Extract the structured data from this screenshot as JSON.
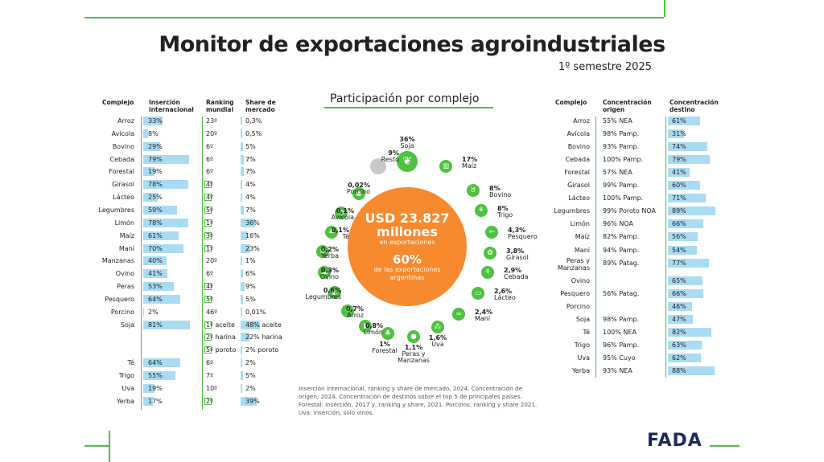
{
  "title": "Monitor de exportaciones agroindustriales",
  "subtitle": "1º semestre 2025",
  "left_headers": {
    "complejo": "Complejo",
    "insercion": "Inserción internacional",
    "ranking": "Ranking mundial",
    "share": "Share de mercado"
  },
  "left_rows": [
    {
      "name": "Arroz",
      "ins": "33%",
      "ins_v": 33,
      "rank": "23º",
      "rank_box": false,
      "share": "0,3%"
    },
    {
      "name": "Avícola",
      "ins": "8%",
      "ins_v": 8,
      "rank": "20º",
      "rank_box": false,
      "share": "0,5%"
    },
    {
      "name": "Bovino",
      "ins": "29%",
      "ins_v": 29,
      "rank": "6º",
      "rank_box": false,
      "share": "5%"
    },
    {
      "name": "Cebada",
      "ins": "79%",
      "ins_v": 79,
      "rank": "6º",
      "rank_box": false,
      "share": "7%"
    },
    {
      "name": "Forestal",
      "ins": "19%",
      "ins_v": 19,
      "rank": "6º",
      "rank_box": false,
      "share": "7%"
    },
    {
      "name": "Girasol",
      "ins": "78%",
      "ins_v": 78,
      "rank": "4º",
      "rank_box": true,
      "share": "4%"
    },
    {
      "name": "Lácteo",
      "ins": "25%",
      "ins_v": 25,
      "rank": "4º",
      "rank_box": true,
      "share": "4%"
    },
    {
      "name": "Legumbres",
      "ins": "59%",
      "ins_v": 59,
      "rank": "5º",
      "rank_box": true,
      "share": "7%"
    },
    {
      "name": "Limón",
      "ins": "78%",
      "ins_v": 78,
      "rank": "1º",
      "rank_box": true,
      "share": "36%"
    },
    {
      "name": "Maíz",
      "ins": "61%",
      "ins_v": 61,
      "rank": "3º",
      "rank_box": true,
      "share": "16%"
    },
    {
      "name": "Maní",
      "ins": "70%",
      "ins_v": 70,
      "rank": "1º",
      "rank_box": true,
      "share": "23%"
    },
    {
      "name": "Manzanas",
      "ins": "40%",
      "ins_v": 40,
      "rank": "20º",
      "rank_box": false,
      "share": "1%"
    },
    {
      "name": "Ovino",
      "ins": "41%",
      "ins_v": 41,
      "rank": "6º",
      "rank_box": false,
      "share": "6%"
    },
    {
      "name": "Peras",
      "ins": "53%",
      "ins_v": 53,
      "rank": "4º",
      "rank_box": true,
      "share": "9%"
    },
    {
      "name": "Pesquero",
      "ins": "64%",
      "ins_v": 64,
      "rank": "5º",
      "rank_box": true,
      "share": "5%"
    },
    {
      "name": "Porcino",
      "ins": "2%",
      "ins_v": 2,
      "rank": "46º",
      "rank_box": false,
      "share": "0,01%"
    },
    {
      "name": "Soja",
      "ins": "81%",
      "ins_v": 81,
      "rank": "1º aceite",
      "rank_box": true,
      "share": "48% aceite"
    },
    {
      "name": "",
      "ins": "",
      "ins_v": 0,
      "rank": "2º harina",
      "rank_box": true,
      "share": "22% harina"
    },
    {
      "name": "",
      "ins": "",
      "ins_v": 0,
      "rank": "5º poroto",
      "rank_box": true,
      "share": "2% poroto"
    },
    {
      "name": "Té",
      "ins": "64%",
      "ins_v": 64,
      "rank": "6º",
      "rank_box": false,
      "share": "2%"
    },
    {
      "name": "Trigo",
      "ins": "55%",
      "ins_v": 55,
      "rank": "7º",
      "rank_box": false,
      "share": "5%"
    },
    {
      "name": "Uva",
      "ins": "19%",
      "ins_v": 19,
      "rank": "10º",
      "rank_box": false,
      "share": "2%"
    },
    {
      "name": "Yerba",
      "ins": "17%",
      "ins_v": 17,
      "rank": "2º",
      "rank_box": true,
      "share": "39%"
    }
  ],
  "center": {
    "heading": "Participación por complejo",
    "amount": "USD 23.827",
    "amount2": "millones",
    "amount_sub": "en exportaciones",
    "pct": "60%",
    "pct_sub": "de las exportaciones argentinas"
  },
  "sectors": [
    {
      "pct": "36%",
      "name": "Soja",
      "icon": "soy"
    },
    {
      "pct": "17%",
      "name": "Maíz",
      "icon": "corn"
    },
    {
      "pct": "8%",
      "name": "Bovino",
      "icon": "cow"
    },
    {
      "pct": "8%",
      "name": "Trigo",
      "icon": "wheat"
    },
    {
      "pct": "4,3%",
      "name": "Pesquero",
      "icon": "fish"
    },
    {
      "pct": "3,8%",
      "name": "Girasol",
      "icon": "sunflower"
    },
    {
      "pct": "2,9%",
      "name": "Cebada",
      "icon": "barley"
    },
    {
      "pct": "2,6%",
      "name": "Lácteo",
      "icon": "milk"
    },
    {
      "pct": "2,4%",
      "name": "Maní",
      "icon": "peanut"
    },
    {
      "pct": "1,6%",
      "name": "Uva",
      "icon": "grape"
    },
    {
      "pct": "1,1%",
      "name": "Peras y Manzanas",
      "icon": "apple"
    },
    {
      "pct": "1%",
      "name": "Forestal",
      "icon": "tree"
    },
    {
      "pct": "0,8%",
      "name": "Limón",
      "icon": "lemon"
    },
    {
      "pct": "0,7%",
      "name": "Arroz",
      "icon": "rice"
    },
    {
      "pct": "0,6%",
      "name": "Legumbres",
      "icon": "legume"
    },
    {
      "pct": "0,3%",
      "name": "Ovino",
      "icon": "sheep"
    },
    {
      "pct": "0,2%",
      "name": "Yerba",
      "icon": "yerba"
    },
    {
      "pct": "0,1%",
      "name": "Té",
      "icon": "tea"
    },
    {
      "pct": "0,1%",
      "name": "Avícola",
      "icon": "chicken"
    },
    {
      "pct": "0,02%",
      "name": "Porcino",
      "icon": "pig"
    },
    {
      "pct": "9%",
      "name": "Resto",
      "icon": "rest"
    }
  ],
  "right_headers": {
    "complejo": "Complejo",
    "origen": "Concentración origen",
    "destino": "Concentración destino"
  },
  "right_rows": [
    {
      "name": "Arroz",
      "origen": "55% NEA",
      "dest": "61%",
      "dest_v": 61
    },
    {
      "name": "Avícola",
      "origen": "98% Pamp.",
      "dest": "31%",
      "dest_v": 31
    },
    {
      "name": "Bovino",
      "origen": "93% Pamp.",
      "dest": "74%",
      "dest_v": 74
    },
    {
      "name": "Cebada",
      "origen": "100% Pamp.",
      "dest": "79%",
      "dest_v": 79
    },
    {
      "name": "Forestal",
      "origen": "57% NEA",
      "dest": "41%",
      "dest_v": 41
    },
    {
      "name": "Girasol",
      "origen": "99% Pamp.",
      "dest": "60%",
      "dest_v": 60
    },
    {
      "name": "Lácteo",
      "origen": "100% Pamp.",
      "dest": "71%",
      "dest_v": 71
    },
    {
      "name": "Legumbres",
      "origen": "99% Poroto NOA",
      "dest": "89%",
      "dest_v": 89
    },
    {
      "name": "Limón",
      "origen": "96% NOA",
      "dest": "66%",
      "dest_v": 66
    },
    {
      "name": "Maíz",
      "origen": "82% Pamp.",
      "dest": "56%",
      "dest_v": 56
    },
    {
      "name": "Maní",
      "origen": "94% Pamp.",
      "dest": "54%",
      "dest_v": 54
    },
    {
      "name": "Peras y Manzanas",
      "origen": "89% Patag.",
      "dest": "77%",
      "dest_v": 77
    },
    {
      "name": "Ovino",
      "origen": "",
      "dest": "65%",
      "dest_v": 65
    },
    {
      "name": "Pesquero",
      "origen": "56% Patag.",
      "dest": "66%",
      "dest_v": 66
    },
    {
      "name": "Porcino",
      "origen": "",
      "dest": "46%",
      "dest_v": 46
    },
    {
      "name": "Soja",
      "origen": "98% Pamp.",
      "dest": "47%",
      "dest_v": 47
    },
    {
      "name": "Té",
      "origen": "100% NEA",
      "dest": "82%",
      "dest_v": 82
    },
    {
      "name": "Trigo",
      "origen": "96% Pamp.",
      "dest": "63%",
      "dest_v": 63
    },
    {
      "name": "Uva",
      "origen": "95% Cuyo",
      "dest": "62%",
      "dest_v": 62
    },
    {
      "name": "Yerba",
      "origen": "93% NEA",
      "dest": "88%",
      "dest_v": 88
    }
  ],
  "note": "Inserción internacional, ranking y share de mercado, 2024. Concentración de origen, 2024. Concentración de destinos sobre el top 5 de principales países. Forestal: inserción, 2017 y, ranking y share, 2021. Porcinos: ranking y share 2021. Uva: inserción, solo vinos.",
  "logo": "FADA",
  "colors": {
    "green": "#4cc23f",
    "orange": "#f7892e",
    "lightblue": "#a9dcf2",
    "grey": "#c8c8c8",
    "navy": "#1a2a5a"
  }
}
